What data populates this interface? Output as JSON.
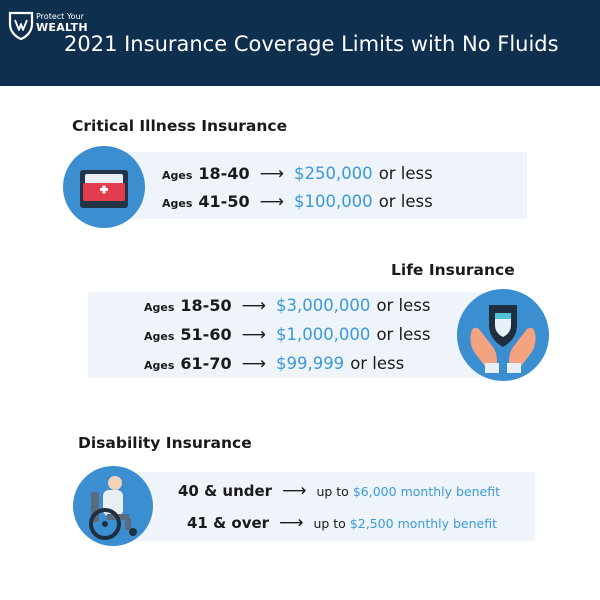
{
  "header": {
    "logo_line1": "Protect Your",
    "logo_line2": "WEALTH",
    "title": "2021 Insurance Coverage Limits with No Fluids"
  },
  "arrow": "⟶",
  "critical_illness": {
    "title": "Critical Illness Insurance",
    "icon": "hospital-bed-icon",
    "rows": [
      {
        "ages_label": "Ages",
        "range": "18-40",
        "amount": "$250,000",
        "suffix": "or less"
      },
      {
        "ages_label": "Ages",
        "range": "41-50",
        "amount": "$100,000",
        "suffix": "or less"
      }
    ]
  },
  "life": {
    "title": "Life Insurance",
    "icon": "hands-shield-icon",
    "rows": [
      {
        "ages_label": "Ages",
        "range": "18-50",
        "amount": "$3,000,000",
        "suffix": "or less"
      },
      {
        "ages_label": "Ages",
        "range": "51-60",
        "amount": "$1,000,000",
        "suffix": "or less"
      },
      {
        "ages_label": "Ages",
        "range": "61-70",
        "amount": "$99,999",
        "suffix": "or less"
      }
    ]
  },
  "disability": {
    "title": "Disability Insurance",
    "icon": "wheelchair-icon",
    "rows": [
      {
        "label": "40 & under",
        "prefix": "up to",
        "amount": "$6,000",
        "suffix": "monthly benefit"
      },
      {
        "label": "41 & over",
        "prefix": "up to",
        "amount": "$2,500",
        "suffix": "monthly benefit"
      }
    ]
  },
  "colors": {
    "header_bg": "#0f2f4f",
    "accent_blue": "#3a9ad9",
    "band_bg": "#eef4fa",
    "icon_circle": "#3b8fd0"
  }
}
